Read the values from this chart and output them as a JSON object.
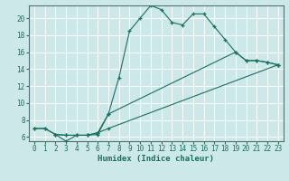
{
  "xlabel": "Humidex (Indice chaleur)",
  "bg_color": "#cce8e8",
  "grid_color": "#ffffff",
  "line_color": "#1a7060",
  "xlim": [
    -0.5,
    23.5
  ],
  "ylim": [
    5.5,
    21.5
  ],
  "yticks": [
    6,
    8,
    10,
    12,
    14,
    16,
    18,
    20
  ],
  "xticks": [
    0,
    1,
    2,
    3,
    4,
    5,
    6,
    7,
    8,
    9,
    10,
    11,
    12,
    13,
    14,
    15,
    16,
    17,
    18,
    19,
    20,
    21,
    22,
    23
  ],
  "line1_x": [
    0,
    1,
    2,
    3,
    4,
    5,
    6,
    7,
    8,
    9,
    10,
    11,
    12,
    13,
    14,
    15,
    16,
    17,
    18,
    19,
    20,
    21,
    22,
    23
  ],
  "line1_y": [
    7,
    7,
    6.3,
    5.5,
    6.2,
    6.2,
    6.3,
    8.7,
    13,
    18.5,
    20,
    21.5,
    21,
    19.5,
    19.2,
    20.5,
    20.5,
    19,
    17.5,
    16,
    15,
    15,
    14.8,
    14.5
  ],
  "line2_x": [
    0,
    1,
    2,
    3,
    4,
    5,
    6,
    7,
    23
  ],
  "line2_y": [
    7,
    7,
    6.3,
    6.2,
    6.2,
    6.2,
    6.5,
    7.0,
    14.5
  ],
  "line3_x": [
    2,
    3,
    4,
    5,
    6,
    7,
    19,
    20,
    21,
    22,
    23
  ],
  "line3_y": [
    6.3,
    6.2,
    6.2,
    6.2,
    6.5,
    8.7,
    16.0,
    15.0,
    15.0,
    14.8,
    14.5
  ]
}
